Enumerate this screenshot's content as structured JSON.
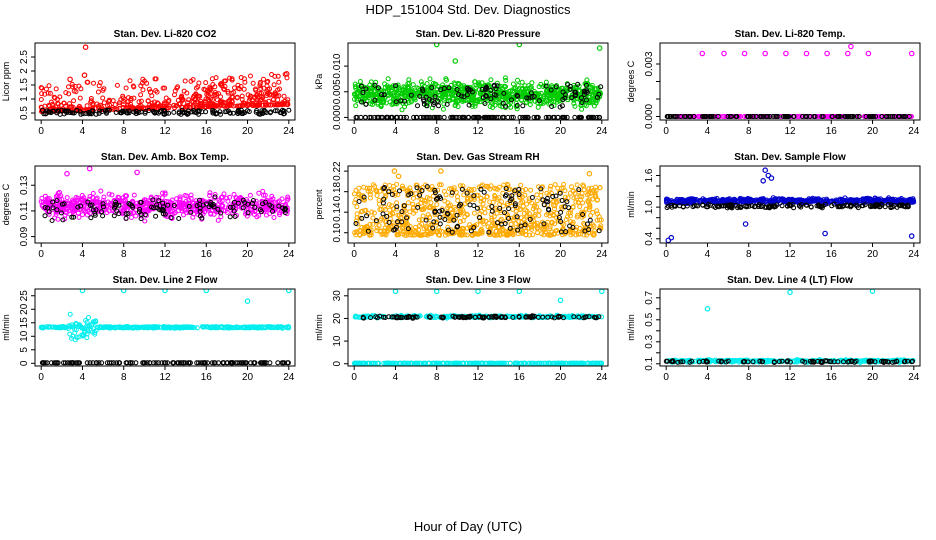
{
  "figure": {
    "title": "HDP_151004 Std. Dev. Diagnostics",
    "xlabel": "Hour of Day (UTC)"
  },
  "chart_data": [
    {
      "type": "scatter",
      "title": "Stan. Dev. Li-820 CO2",
      "ylabel": "Licor ppm",
      "xlim": [
        -0.6,
        24.6
      ],
      "ylim": [
        0.25,
        3.0
      ],
      "xticks": [
        0,
        4,
        8,
        12,
        16,
        20,
        24
      ],
      "yticks": [
        0.5,
        1.0,
        1.5,
        2.0,
        2.5
      ],
      "ytick_labels": [
        "0.5",
        "1",
        "1.5",
        "2",
        "2.5"
      ],
      "series": [
        {
          "color": "#ff0000",
          "profile": "co2"
        },
        {
          "color": "#000000",
          "profile": "co2_black"
        }
      ],
      "outliers": [
        [
          4.3,
          2.85
        ],
        [
          2.8,
          1.7
        ],
        [
          4.2,
          1.85
        ],
        [
          23.8,
          1.9
        ],
        [
          10.6,
          1.25
        ]
      ]
    },
    {
      "type": "scatter",
      "title": "Stan. Dev. Li-820 Pressure",
      "ylabel": "kPa",
      "xlim": [
        -0.6,
        24.6
      ],
      "ylim": [
        -0.0005,
        0.0145
      ],
      "xticks": [
        0,
        4,
        8,
        12,
        16,
        20,
        24
      ],
      "yticks": [
        0.0,
        0.005,
        0.01
      ],
      "ytick_labels": [
        "0.000",
        "0.005",
        "0.010"
      ],
      "series": [
        {
          "color": "#00cc00",
          "profile": "pressure"
        },
        {
          "color": "#000000",
          "profile": "pressure_black"
        }
      ],
      "outliers": [
        [
          8.0,
          0.0142
        ],
        [
          16.0,
          0.0142
        ],
        [
          23.8,
          0.0135
        ],
        [
          9.8,
          0.011
        ]
      ]
    },
    {
      "type": "scatter",
      "title": "Stan. Dev. Li-820 Temp.",
      "ylabel": "degrees C",
      "xlim": [
        -0.6,
        24.6
      ],
      "ylim": [
        -0.0002,
        0.0042
      ],
      "xticks": [
        0,
        4,
        8,
        12,
        16,
        20,
        24
      ],
      "yticks": [
        0.0,
        0.001,
        0.002,
        0.003
      ],
      "ytick_labels": [
        "0.000",
        "",
        "",
        "0.003"
      ],
      "series": [
        {
          "color": "#ff00ff",
          "profile": "temp"
        },
        {
          "color": "#000000",
          "profile": "temp_black"
        }
      ],
      "outliers": [
        [
          3.5,
          0.0036
        ],
        [
          5.6,
          0.0036
        ],
        [
          7.6,
          0.0036
        ],
        [
          9.6,
          0.0036
        ],
        [
          11.6,
          0.0036
        ],
        [
          13.6,
          0.0036
        ],
        [
          15.6,
          0.0036
        ],
        [
          17.6,
          0.0036
        ],
        [
          17.9,
          0.004
        ],
        [
          19.6,
          0.0036
        ],
        [
          23.8,
          0.0036
        ]
      ]
    },
    {
      "type": "scatter",
      "title": "Stan. Dev. Amb. Box Temp.",
      "ylabel": "degrees C",
      "xlim": [
        -0.6,
        24.6
      ],
      "ylim": [
        0.085,
        0.145
      ],
      "xticks": [
        0,
        4,
        8,
        12,
        16,
        20,
        24
      ],
      "yticks": [
        0.09,
        0.11,
        0.13
      ],
      "ytick_labels": [
        "0.09",
        "0.11",
        "0.13"
      ],
      "series": [
        {
          "color": "#ff00ff",
          "profile": "boxtemp"
        },
        {
          "color": "#000000",
          "profile": "boxtemp_black"
        }
      ],
      "outliers": [
        [
          4.7,
          0.143
        ],
        [
          9.3,
          0.14
        ],
        [
          2.5,
          0.139
        ]
      ]
    },
    {
      "type": "scatter",
      "title": "Stan. Dev. Gas Stream RH",
      "ylabel": "percent",
      "xlim": [
        -0.6,
        24.6
      ],
      "ylim": [
        0.08,
        0.23
      ],
      "xticks": [
        0,
        4,
        8,
        12,
        16,
        20,
        24
      ],
      "yticks": [
        0.1,
        0.14,
        0.18,
        0.22
      ],
      "ytick_labels": [
        "0.10",
        "0.14",
        "0.18",
        "0.22"
      ],
      "series": [
        {
          "color": "#ffaa00",
          "profile": "rh"
        },
        {
          "color": "#000000",
          "profile": "rh_black"
        }
      ],
      "outliers": [
        [
          3.9,
          0.22
        ],
        [
          8.4,
          0.22
        ],
        [
          4.3,
          0.21
        ],
        [
          22.8,
          0.215
        ]
      ]
    },
    {
      "type": "scatter",
      "title": "Stan. Dev. Sample Flow",
      "ylabel": "ml/min",
      "xlim": [
        -0.6,
        24.6
      ],
      "ylim": [
        0.32,
        1.78
      ],
      "xticks": [
        0,
        4,
        8,
        12,
        16,
        20,
        24
      ],
      "yticks": [
        0.4,
        0.6,
        0.8,
        1.0,
        1.2,
        1.4,
        1.6
      ],
      "ytick_labels": [
        "0.4",
        "",
        "",
        "1.0",
        "",
        "",
        "1.6"
      ],
      "series": [
        {
          "color": "#0000cc",
          "profile": "flow"
        },
        {
          "color": "#000000",
          "profile": "flow_black"
        }
      ],
      "outliers": [
        [
          0.2,
          0.37
        ],
        [
          0.5,
          0.42
        ],
        [
          23.8,
          0.45
        ],
        [
          15.4,
          0.5
        ],
        [
          9.6,
          1.7
        ],
        [
          9.9,
          1.6
        ],
        [
          10.2,
          1.55
        ],
        [
          9.4,
          1.5
        ],
        [
          7.7,
          0.68
        ]
      ]
    },
    {
      "type": "scatter",
      "title": "Stan. Dev. Line 2 Flow",
      "ylabel": "ml/min",
      "xlim": [
        -0.6,
        24.6
      ],
      "ylim": [
        -1.0,
        27.5
      ],
      "xticks": [
        0,
        4,
        8,
        12,
        16,
        20,
        24
      ],
      "yticks": [
        0,
        5,
        10,
        15,
        20,
        25
      ],
      "ytick_labels": [
        "0",
        "5",
        "10",
        "15",
        "20",
        "25"
      ],
      "series": [
        {
          "color": "#00eeee",
          "profile": "line2"
        },
        {
          "color": "#000000",
          "profile": "line2_black"
        }
      ],
      "outliers": [
        [
          4.0,
          27.0
        ],
        [
          8.0,
          27.0
        ],
        [
          12.0,
          27.0
        ],
        [
          16.0,
          27.0
        ],
        [
          24.0,
          27.0
        ],
        [
          20.0,
          23.0
        ]
      ]
    },
    {
      "type": "scatter",
      "title": "Stan. Dev. Line 3 Flow",
      "ylabel": "ml/min",
      "xlim": [
        -0.6,
        24.6
      ],
      "ylim": [
        -1.0,
        33.0
      ],
      "xticks": [
        0,
        4,
        8,
        12,
        16,
        20,
        24
      ],
      "yticks": [
        0,
        10,
        20,
        30
      ],
      "ytick_labels": [
        "0",
        "10",
        "20",
        "30"
      ],
      "series": [
        {
          "color": "#00eeee",
          "profile": "line3"
        },
        {
          "color": "#000000",
          "profile": "line3_black"
        }
      ],
      "outliers": [
        [
          4.0,
          32.0
        ],
        [
          8.0,
          32.0
        ],
        [
          12.0,
          32.0
        ],
        [
          16.0,
          32.0
        ],
        [
          24.0,
          32.0
        ],
        [
          20.0,
          28.0
        ]
      ]
    },
    {
      "type": "scatter",
      "title": "Stan. Dev. Line 4 (LT) Flow",
      "ylabel": "ml/min",
      "xlim": [
        -0.6,
        24.6
      ],
      "ylim": [
        0.08,
        0.78
      ],
      "xticks": [
        0,
        4,
        8,
        12,
        16,
        20,
        24
      ],
      "yticks": [
        0.1,
        0.2,
        0.3,
        0.4,
        0.5,
        0.6,
        0.7
      ],
      "ytick_labels": [
        "0.1",
        "",
        "0.3",
        "",
        "0.5",
        "",
        "0.7"
      ],
      "series": [
        {
          "color": "#00eeee",
          "profile": "line4"
        },
        {
          "color": "#000000",
          "profile": "line4_black"
        }
      ],
      "outliers": [
        [
          4.0,
          0.6
        ],
        [
          12.0,
          0.75
        ],
        [
          20.0,
          0.76
        ]
      ]
    }
  ]
}
